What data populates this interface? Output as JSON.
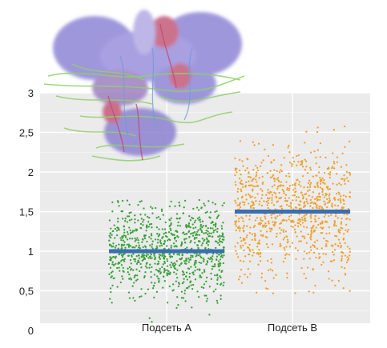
{
  "chart_data": {
    "type": "scatter",
    "title": "",
    "xlabel": "",
    "ylabel": "",
    "ylim": [
      0,
      3
    ],
    "y_ticks": [
      "0",
      "0,5",
      "1",
      "1,5",
      "2",
      "2,5",
      "3"
    ],
    "grid": true,
    "categories": [
      "Подсеть A",
      "Подсеть B"
    ],
    "series": [
      {
        "category": "Подсеть A",
        "color": "#3aa13a",
        "mean": 1.0,
        "range": [
          0.1,
          1.65
        ],
        "mean_line_color": "#3b6fb0"
      },
      {
        "category": "Подсеть B",
        "color": "#f0a030",
        "mean": 1.5,
        "range": [
          0.45,
          2.6
        ],
        "mean_line_color": "#3b6fb0"
      }
    ],
    "decoration": "brain-tractography-image"
  }
}
